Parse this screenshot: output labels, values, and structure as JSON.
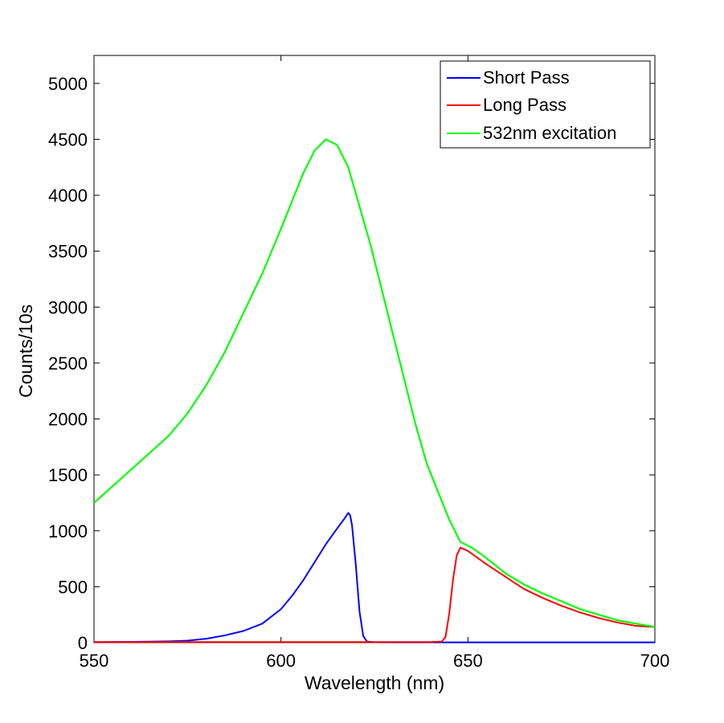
{
  "chart_data": {
    "type": "line",
    "title": "",
    "xlabel": "Wavelength (nm)",
    "ylabel": "Counts/10s",
    "xlim": [
      550,
      700
    ],
    "ylim": [
      0,
      5250
    ],
    "x_ticks": [
      550,
      600,
      650,
      700
    ],
    "y_ticks": [
      0,
      500,
      1000,
      1500,
      2000,
      2500,
      3000,
      3500,
      4000,
      4500,
      5000
    ],
    "grid": false,
    "legend_position": "top-right",
    "series": [
      {
        "name": "Short Pass",
        "color": "#0000ff",
        "x": [
          550,
          560,
          570,
          575,
          580,
          585,
          590,
          595,
          600,
          603,
          606,
          609,
          612,
          615,
          617,
          618,
          618.5,
          619,
          620,
          621,
          622,
          623,
          625,
          630,
          640,
          650,
          660,
          670,
          680,
          690,
          700
        ],
        "y": [
          5,
          7,
          12,
          18,
          35,
          65,
          105,
          170,
          300,
          420,
          560,
          720,
          880,
          1020,
          1110,
          1160,
          1140,
          1050,
          700,
          280,
          60,
          10,
          4,
          3,
          3,
          3,
          3,
          3,
          3,
          3,
          3
        ]
      },
      {
        "name": "Long Pass",
        "color": "#ff0000",
        "x": [
          550,
          570,
          590,
          610,
          630,
          640,
          643,
          644,
          645,
          646,
          647,
          648,
          650,
          655,
          660,
          665,
          670,
          675,
          680,
          685,
          690,
          695,
          700
        ],
        "y": [
          5,
          5,
          5,
          5,
          5,
          5,
          10,
          50,
          260,
          560,
          780,
          850,
          820,
          700,
          590,
          480,
          400,
          330,
          270,
          220,
          180,
          150,
          140
        ]
      },
      {
        "name": "532nm excitation",
        "color": "#00ff00",
        "x": [
          550,
          555,
          560,
          565,
          570,
          575,
          580,
          585,
          590,
          595,
          600,
          603,
          606,
          609,
          612,
          615,
          618,
          621,
          624,
          627,
          630,
          633,
          636,
          639,
          642,
          645,
          648,
          651,
          654,
          657,
          660,
          665,
          670,
          675,
          680,
          685,
          690,
          695,
          700
        ],
        "y": [
          1250,
          1400,
          1550,
          1700,
          1850,
          2050,
          2300,
          2600,
          2950,
          3300,
          3700,
          3950,
          4200,
          4400,
          4500,
          4450,
          4250,
          3900,
          3550,
          3150,
          2750,
          2350,
          1950,
          1600,
          1350,
          1100,
          900,
          850,
          780,
          700,
          620,
          520,
          440,
          370,
          300,
          250,
          200,
          170,
          140
        ]
      }
    ]
  }
}
